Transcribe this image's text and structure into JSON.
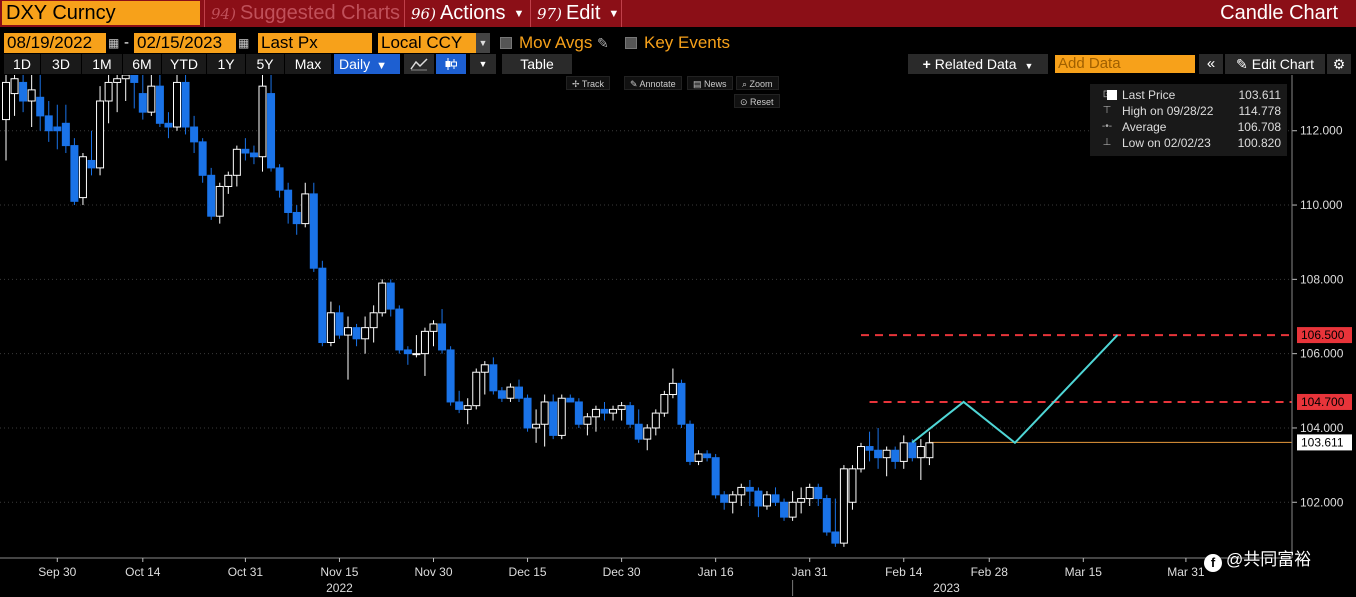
{
  "toolbar_top": {
    "ticker": "DXY Curncy",
    "menus": [
      {
        "num": "94)",
        "label": "Suggested Charts",
        "dim": true
      },
      {
        "num": "96)",
        "label": "Actions",
        "dropdown": true
      },
      {
        "num": "97)",
        "label": "Edit",
        "dropdown": true
      }
    ],
    "title": "Candle Chart"
  },
  "toolbar_row2": {
    "start_date": "08/19/2022",
    "date_sep": "-",
    "end_date": "02/15/2023",
    "field": "Last Px",
    "currency": "Local CCY",
    "mov_avgs": "Mov Avgs",
    "key_events": "Key Events"
  },
  "toolbar_row3": {
    "periods": [
      "1D",
      "3D",
      "1M",
      "6M",
      "YTD",
      "1Y",
      "5Y",
      "Max"
    ],
    "frequency": "Daily",
    "table_label": "Table",
    "related_data": "Related Data",
    "add_data_placeholder": "Add Data",
    "edit_chart": "Edit Chart"
  },
  "chart_tools": [
    "Track",
    "Annotate",
    "News",
    "Zoom"
  ],
  "reset_label": "Reset",
  "legend": {
    "rows": [
      {
        "label": "Last Price",
        "value": "103.611"
      },
      {
        "label": "High on 09/28/22",
        "value": "114.778"
      },
      {
        "label": "Average",
        "value": "106.708"
      },
      {
        "label": "Low on 02/02/23",
        "value": "100.820"
      }
    ]
  },
  "colors": {
    "up_candle": "#ffffff",
    "down_candle": "#1a73e8",
    "projection": "#4fd6d6",
    "resistance": "#e8343a",
    "last_price_line": "#e89a3c",
    "accent": "#f7a11a",
    "header_bg": "#8b0f17"
  },
  "chart_data": {
    "type": "candlestick",
    "ylim": [
      100.5,
      113.5
    ],
    "y_ticks": [
      "102.000",
      "104.000",
      "106.000",
      "108.000",
      "110.000",
      "112.000"
    ],
    "x_ticks": [
      {
        "idx": 6,
        "label": "Sep 30"
      },
      {
        "idx": 16,
        "label": "Oct 14"
      },
      {
        "idx": 28,
        "label": "Oct 31"
      },
      {
        "idx": 39,
        "label": "Nov 15"
      },
      {
        "idx": 50,
        "label": "Nov 30"
      },
      {
        "idx": 61,
        "label": "Dec 15"
      },
      {
        "idx": 72,
        "label": "Dec 30"
      },
      {
        "idx": 83,
        "label": "Jan 16"
      },
      {
        "idx": 94,
        "label": "Jan 31"
      },
      {
        "idx": 105,
        "label": "Feb 14"
      },
      {
        "idx": 115,
        "label": "Feb 28"
      },
      {
        "idx": 126,
        "label": "Mar 15"
      },
      {
        "idx": 138,
        "label": "Mar 31"
      }
    ],
    "years": [
      {
        "idx": 39,
        "label": "2022"
      },
      {
        "idx": 110,
        "label": "2023"
      }
    ],
    "last_price": 103.611,
    "last_price_label": "103.611",
    "resistance_levels": [
      {
        "value": 106.5,
        "label": "106.500",
        "from_idx": 100
      },
      {
        "value": 104.7,
        "label": "104.700",
        "from_idx": 101
      }
    ],
    "projection_path": [
      {
        "idx": 106,
        "value": 103.611
      },
      {
        "idx": 112,
        "value": 104.7
      },
      {
        "idx": 118,
        "value": 103.6
      },
      {
        "idx": 130,
        "value": 106.5
      }
    ],
    "candles": [
      {
        "o": 112.3,
        "h": 113.6,
        "l": 111.2,
        "c": 113.3
      },
      {
        "o": 113.0,
        "h": 113.6,
        "l": 112.4,
        "c": 113.4
      },
      {
        "o": 113.3,
        "h": 113.6,
        "l": 112.5,
        "c": 112.8
      },
      {
        "o": 112.8,
        "h": 113.6,
        "l": 112.1,
        "c": 113.1
      },
      {
        "o": 112.9,
        "h": 113.6,
        "l": 112.0,
        "c": 112.4
      },
      {
        "o": 112.4,
        "h": 112.8,
        "l": 111.7,
        "c": 112.0
      },
      {
        "o": 112.1,
        "h": 112.7,
        "l": 111.5,
        "c": 112.0
      },
      {
        "o": 112.2,
        "h": 112.7,
        "l": 111.4,
        "c": 111.6
      },
      {
        "o": 111.6,
        "h": 111.8,
        "l": 110.0,
        "c": 110.1
      },
      {
        "o": 110.2,
        "h": 111.4,
        "l": 110.0,
        "c": 111.3
      },
      {
        "o": 111.2,
        "h": 112.0,
        "l": 110.8,
        "c": 111.0
      },
      {
        "o": 111.0,
        "h": 113.2,
        "l": 110.8,
        "c": 112.8
      },
      {
        "o": 112.8,
        "h": 113.6,
        "l": 112.2,
        "c": 113.3
      },
      {
        "o": 113.3,
        "h": 113.6,
        "l": 112.5,
        "c": 113.4
      },
      {
        "o": 113.4,
        "h": 113.6,
        "l": 112.8,
        "c": 113.5
      },
      {
        "o": 113.5,
        "h": 113.6,
        "l": 112.6,
        "c": 113.3
      },
      {
        "o": 113.0,
        "h": 113.6,
        "l": 112.3,
        "c": 112.5
      },
      {
        "o": 112.5,
        "h": 113.6,
        "l": 112.4,
        "c": 113.2
      },
      {
        "o": 113.2,
        "h": 113.6,
        "l": 112.1,
        "c": 112.2
      },
      {
        "o": 112.2,
        "h": 112.5,
        "l": 111.8,
        "c": 112.1
      },
      {
        "o": 112.1,
        "h": 113.6,
        "l": 112.0,
        "c": 113.3
      },
      {
        "o": 113.3,
        "h": 113.6,
        "l": 111.9,
        "c": 112.1
      },
      {
        "o": 112.1,
        "h": 112.4,
        "l": 111.4,
        "c": 111.7
      },
      {
        "o": 111.7,
        "h": 111.8,
        "l": 110.6,
        "c": 110.8
      },
      {
        "o": 110.8,
        "h": 111.0,
        "l": 109.6,
        "c": 109.7
      },
      {
        "o": 109.7,
        "h": 110.6,
        "l": 109.5,
        "c": 110.5
      },
      {
        "o": 110.5,
        "h": 110.9,
        "l": 110.3,
        "c": 110.8
      },
      {
        "o": 110.8,
        "h": 111.6,
        "l": 110.5,
        "c": 111.5
      },
      {
        "o": 111.5,
        "h": 111.8,
        "l": 111.2,
        "c": 111.4
      },
      {
        "o": 111.4,
        "h": 111.6,
        "l": 111.1,
        "c": 111.3
      },
      {
        "o": 111.3,
        "h": 113.6,
        "l": 110.9,
        "c": 113.2
      },
      {
        "o": 113.0,
        "h": 113.6,
        "l": 110.9,
        "c": 111.0
      },
      {
        "o": 111.0,
        "h": 111.1,
        "l": 110.2,
        "c": 110.4
      },
      {
        "o": 110.4,
        "h": 110.6,
        "l": 109.5,
        "c": 109.8
      },
      {
        "o": 109.8,
        "h": 110.0,
        "l": 109.2,
        "c": 109.5
      },
      {
        "o": 109.5,
        "h": 110.6,
        "l": 109.4,
        "c": 110.3
      },
      {
        "o": 110.3,
        "h": 110.6,
        "l": 108.2,
        "c": 108.3
      },
      {
        "o": 108.3,
        "h": 108.5,
        "l": 106.2,
        "c": 106.3
      },
      {
        "o": 106.3,
        "h": 107.4,
        "l": 106.2,
        "c": 107.1
      },
      {
        "o": 107.1,
        "h": 107.3,
        "l": 106.4,
        "c": 106.5
      },
      {
        "o": 106.5,
        "h": 107.0,
        "l": 105.3,
        "c": 106.7
      },
      {
        "o": 106.7,
        "h": 106.8,
        "l": 106.2,
        "c": 106.4
      },
      {
        "o": 106.4,
        "h": 107.0,
        "l": 106.0,
        "c": 106.7
      },
      {
        "o": 106.7,
        "h": 107.3,
        "l": 106.3,
        "c": 107.1
      },
      {
        "o": 107.1,
        "h": 108.0,
        "l": 107.0,
        "c": 107.9
      },
      {
        "o": 107.9,
        "h": 108.0,
        "l": 107.0,
        "c": 107.2
      },
      {
        "o": 107.2,
        "h": 107.3,
        "l": 106.0,
        "c": 106.1
      },
      {
        "o": 106.1,
        "h": 106.2,
        "l": 105.7,
        "c": 106.0
      },
      {
        "o": 106.0,
        "h": 106.5,
        "l": 105.9,
        "c": 106.0
      },
      {
        "o": 106.0,
        "h": 106.7,
        "l": 105.4,
        "c": 106.6
      },
      {
        "o": 106.6,
        "h": 106.9,
        "l": 106.2,
        "c": 106.8
      },
      {
        "o": 106.8,
        "h": 107.2,
        "l": 106.0,
        "c": 106.1
      },
      {
        "o": 106.1,
        "h": 106.2,
        "l": 104.6,
        "c": 104.7
      },
      {
        "o": 104.7,
        "h": 105.0,
        "l": 104.4,
        "c": 104.5
      },
      {
        "o": 104.5,
        "h": 104.8,
        "l": 104.1,
        "c": 104.6
      },
      {
        "o": 104.6,
        "h": 105.6,
        "l": 104.5,
        "c": 105.5
      },
      {
        "o": 105.5,
        "h": 105.8,
        "l": 104.9,
        "c": 105.7
      },
      {
        "o": 105.7,
        "h": 105.9,
        "l": 104.9,
        "c": 105.0
      },
      {
        "o": 105.0,
        "h": 105.1,
        "l": 104.7,
        "c": 104.8
      },
      {
        "o": 104.8,
        "h": 105.2,
        "l": 104.7,
        "c": 105.1
      },
      {
        "o": 105.1,
        "h": 105.3,
        "l": 104.7,
        "c": 104.8
      },
      {
        "o": 104.8,
        "h": 104.9,
        "l": 103.9,
        "c": 104.0
      },
      {
        "o": 104.0,
        "h": 104.5,
        "l": 103.6,
        "c": 104.1
      },
      {
        "o": 104.1,
        "h": 104.9,
        "l": 103.5,
        "c": 104.7
      },
      {
        "o": 104.7,
        "h": 104.9,
        "l": 103.7,
        "c": 103.8
      },
      {
        "o": 103.8,
        "h": 104.9,
        "l": 103.7,
        "c": 104.8
      },
      {
        "o": 104.8,
        "h": 104.9,
        "l": 104.7,
        "c": 104.7
      },
      {
        "o": 104.7,
        "h": 104.8,
        "l": 104.0,
        "c": 104.1
      },
      {
        "o": 104.1,
        "h": 104.4,
        "l": 103.8,
        "c": 104.3
      },
      {
        "o": 104.3,
        "h": 104.6,
        "l": 103.9,
        "c": 104.5
      },
      {
        "o": 104.5,
        "h": 104.7,
        "l": 104.2,
        "c": 104.4
      },
      {
        "o": 104.4,
        "h": 104.6,
        "l": 104.2,
        "c": 104.5
      },
      {
        "o": 104.5,
        "h": 104.7,
        "l": 104.2,
        "c": 104.6
      },
      {
        "o": 104.6,
        "h": 104.7,
        "l": 104.0,
        "c": 104.1
      },
      {
        "o": 104.1,
        "h": 104.5,
        "l": 103.6,
        "c": 103.7
      },
      {
        "o": 103.7,
        "h": 104.1,
        "l": 103.4,
        "c": 104.0
      },
      {
        "o": 104.0,
        "h": 104.5,
        "l": 103.8,
        "c": 104.4
      },
      {
        "o": 104.4,
        "h": 105.0,
        "l": 104.3,
        "c": 104.9
      },
      {
        "o": 104.9,
        "h": 105.6,
        "l": 104.8,
        "c": 105.2
      },
      {
        "o": 105.2,
        "h": 105.3,
        "l": 104.0,
        "c": 104.1
      },
      {
        "o": 104.1,
        "h": 104.2,
        "l": 103.0,
        "c": 103.1
      },
      {
        "o": 103.1,
        "h": 103.4,
        "l": 103.0,
        "c": 103.3
      },
      {
        "o": 103.3,
        "h": 103.4,
        "l": 103.1,
        "c": 103.2
      },
      {
        "o": 103.2,
        "h": 103.3,
        "l": 102.1,
        "c": 102.2
      },
      {
        "o": 102.2,
        "h": 102.3,
        "l": 101.8,
        "c": 102.0
      },
      {
        "o": 102.0,
        "h": 102.3,
        "l": 101.7,
        "c": 102.2
      },
      {
        "o": 102.2,
        "h": 102.5,
        "l": 101.9,
        "c": 102.4
      },
      {
        "o": 102.4,
        "h": 102.6,
        "l": 101.9,
        "c": 102.3
      },
      {
        "o": 102.3,
        "h": 102.4,
        "l": 101.6,
        "c": 101.9
      },
      {
        "o": 101.9,
        "h": 102.3,
        "l": 101.8,
        "c": 102.2
      },
      {
        "o": 102.2,
        "h": 102.4,
        "l": 101.9,
        "c": 102.0
      },
      {
        "o": 102.0,
        "h": 102.1,
        "l": 101.5,
        "c": 101.6
      },
      {
        "o": 101.6,
        "h": 102.3,
        "l": 101.5,
        "c": 102.0
      },
      {
        "o": 102.0,
        "h": 102.4,
        "l": 101.7,
        "c": 102.1
      },
      {
        "o": 102.1,
        "h": 102.5,
        "l": 101.9,
        "c": 102.4
      },
      {
        "o": 102.4,
        "h": 102.5,
        "l": 101.9,
        "c": 102.1
      },
      {
        "o": 102.1,
        "h": 102.2,
        "l": 101.1,
        "c": 101.2
      },
      {
        "o": 101.2,
        "h": 102.1,
        "l": 100.8,
        "c": 100.9
      },
      {
        "o": 100.9,
        "h": 103.0,
        "l": 100.8,
        "c": 102.9
      },
      {
        "o": 102.0,
        "h": 103.0,
        "l": 101.8,
        "c": 102.9
      },
      {
        "o": 102.9,
        "h": 103.6,
        "l": 102.8,
        "c": 103.5
      },
      {
        "o": 103.5,
        "h": 103.9,
        "l": 103.1,
        "c": 103.4
      },
      {
        "o": 103.4,
        "h": 104.0,
        "l": 102.9,
        "c": 103.2
      },
      {
        "o": 103.2,
        "h": 103.5,
        "l": 102.7,
        "c": 103.4
      },
      {
        "o": 103.4,
        "h": 103.5,
        "l": 102.9,
        "c": 103.1
      },
      {
        "o": 103.1,
        "h": 103.8,
        "l": 102.9,
        "c": 103.6
      },
      {
        "o": 103.6,
        "h": 103.7,
        "l": 103.1,
        "c": 103.2
      },
      {
        "o": 103.2,
        "h": 103.7,
        "l": 102.6,
        "c": 103.5
      },
      {
        "o": 103.2,
        "h": 103.9,
        "l": 103.0,
        "c": 103.6
      }
    ]
  },
  "watermark": "@共同富裕"
}
